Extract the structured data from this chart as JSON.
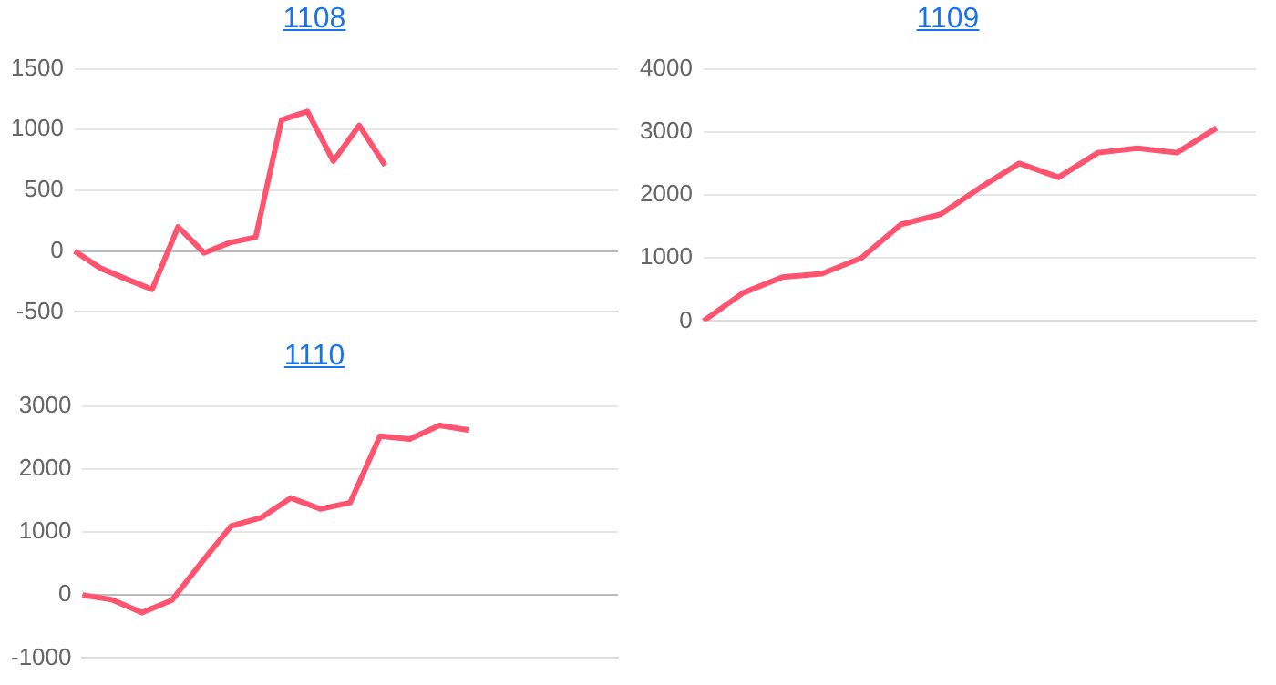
{
  "chart_data": [
    {
      "type": "line",
      "title": "1108",
      "categories": [
        null,
        null,
        null,
        null,
        null,
        null,
        null,
        null,
        null,
        null,
        null,
        null,
        null,
        null,
        null,
        null,
        null,
        null,
        null,
        null,
        null,
        null
      ],
      "series": [
        {
          "color": "#ff5470",
          "values": [
            0,
            -140,
            -230,
            -315,
            200,
            -15,
            70,
            115,
            1080,
            1150,
            740,
            1035,
            705,
            null,
            null,
            null,
            null,
            null,
            null,
            null,
            null,
            null
          ]
        }
      ],
      "ylim": [
        -500,
        1500
      ],
      "yticks": [
        -500,
        0,
        500,
        1000,
        1500
      ],
      "grid": "y",
      "tick_labels": "y",
      "marker": "none",
      "line_style": "solid",
      "legend": false
    },
    {
      "type": "line",
      "title": "1109",
      "categories": [
        null,
        null,
        null,
        null,
        null,
        null,
        null,
        null,
        null,
        null,
        null,
        null,
        null,
        null,
        null
      ],
      "series": [
        {
          "color": "#ff5470",
          "values": [
            0,
            445,
            695,
            750,
            1000,
            1530,
            1690,
            2110,
            2500,
            2280,
            2670,
            2740,
            2670,
            3060,
            null
          ]
        }
      ],
      "ylim": [
        0,
        4000
      ],
      "yticks": [
        0,
        1000,
        2000,
        3000,
        4000
      ],
      "grid": "y",
      "tick_labels": "y",
      "marker": "none",
      "line_style": "solid",
      "legend": false
    },
    {
      "type": "line",
      "title": "1110",
      "categories": [
        null,
        null,
        null,
        null,
        null,
        null,
        null,
        null,
        null,
        null,
        null,
        null,
        null,
        null,
        null,
        null,
        null,
        null,
        null
      ],
      "series": [
        {
          "color": "#ff5470",
          "values": [
            0,
            -75,
            -280,
            -85,
            515,
            1095,
            1225,
            1540,
            1365,
            1465,
            2520,
            2475,
            2690,
            2615,
            null,
            null,
            null,
            null,
            null
          ]
        }
      ],
      "ylim": [
        -1000,
        3000
      ],
      "yticks": [
        -1000,
        0,
        1000,
        2000,
        3000
      ],
      "grid": "y",
      "tick_labels": "y",
      "marker": "none",
      "line_style": "solid",
      "legend": false
    }
  ]
}
